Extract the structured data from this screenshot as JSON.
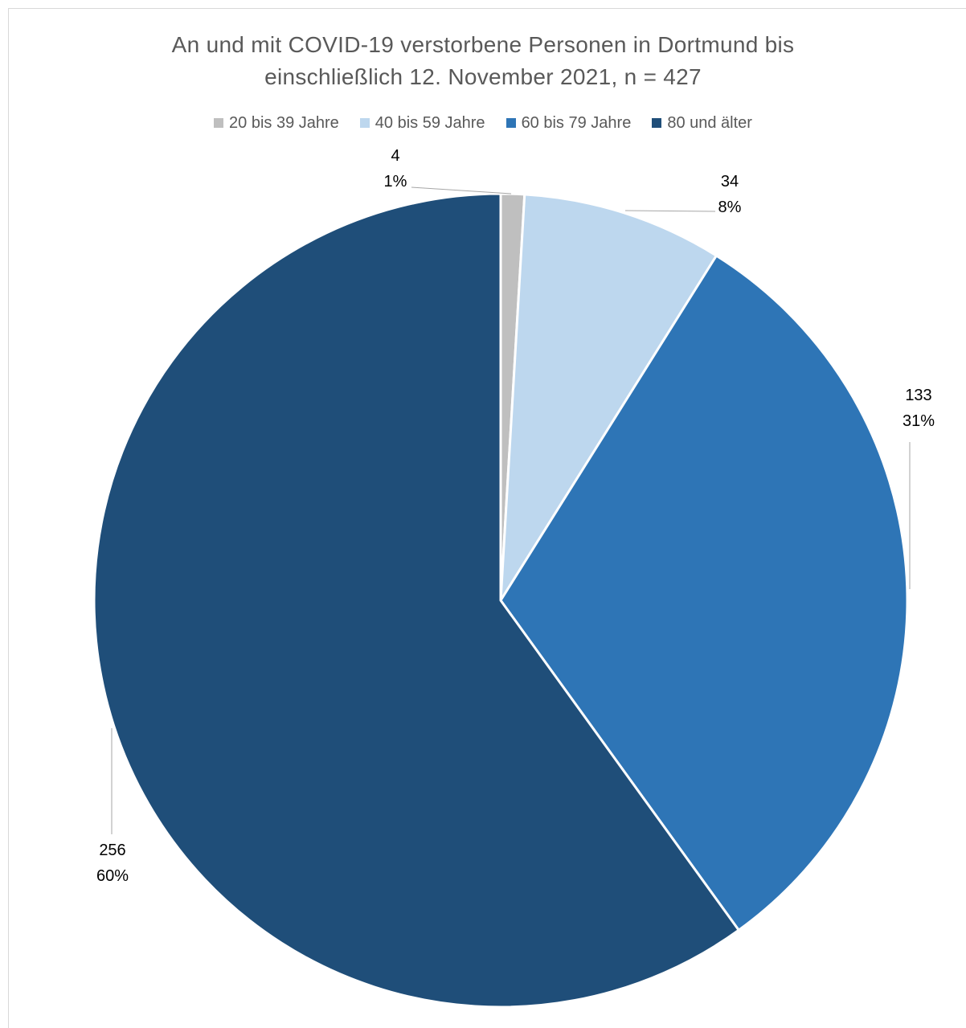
{
  "chart_data": {
    "type": "pie",
    "title_lines": [
      "An und mit COVID-19 verstorbene Personen in Dortmund bis",
      "einschließlich 12. November 2021, n = 427"
    ],
    "categories": [
      "20 bis 39 Jahre",
      "40 bis 59 Jahre",
      "60 bis 79 Jahre",
      "80 und älter"
    ],
    "values": [
      4,
      34,
      133,
      256
    ],
    "percent_labels": [
      "1%",
      "8%",
      "31%",
      "60%"
    ],
    "colors": [
      "#bfbfbf",
      "#bdd7ee",
      "#2e75b6",
      "#1f4e79"
    ],
    "legend_position": "top",
    "start_angle_deg": 0,
    "direction": "clockwise"
  }
}
